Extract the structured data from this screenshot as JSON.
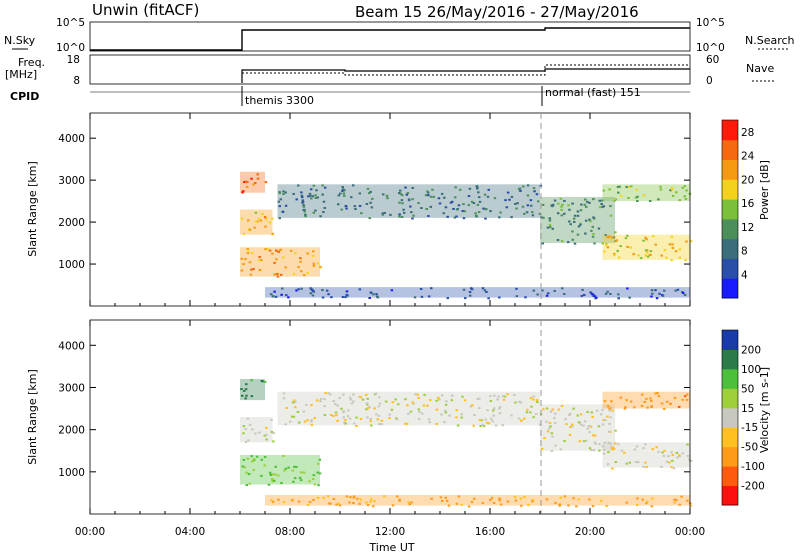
{
  "header": {
    "station": "Unwin (fitACF)",
    "beam_date": "Beam 15 26/May/2016 - 27/May/2016"
  },
  "scan_panels": {
    "nsky_label": "N.Sky",
    "nsearch_label": "N.Search",
    "nsky_ticks": [
      "10^5",
      "10^0"
    ],
    "nsearch_ticks": [
      "10^5",
      "10^0"
    ],
    "freq_label": "Freq.",
    "freq_unit": "[MHz]",
    "freq_ticks": [
      "18",
      "8"
    ],
    "nave_label": "Nave",
    "nave_ticks": [
      "60",
      "0"
    ],
    "cpid_label": "CPID",
    "cpid_modes": [
      "themis 3300",
      "normal (fast) 151"
    ]
  },
  "colors": {
    "power": [
      "#1a1aff",
      "#2a4fa8",
      "#3b6e7a",
      "#4c8f5a",
      "#7cbf3a",
      "#f2d21a",
      "#f59a10",
      "#f56a10",
      "#ff1a0a"
    ],
    "velocity": [
      "#ff1010",
      "#ff5a10",
      "#ff9a1a",
      "#ffc020",
      "#c8c8c0",
      "#9ccf3a",
      "#4cc03a",
      "#2a7a4a",
      "#1a3aa8"
    ]
  },
  "chart_data": [
    {
      "type": "heatmap",
      "name": "power",
      "xlabel": "",
      "ylabel": "Slant Range [km]",
      "x_ticks": [
        "00:00",
        "04:00",
        "08:00",
        "12:00",
        "16:00",
        "20:00",
        "00:00"
      ],
      "xlim_hours": [
        0,
        24
      ],
      "ylim_km": [
        0,
        4600
      ],
      "y_ticks": [
        1000,
        2000,
        3000,
        4000
      ],
      "colorbar_label": "Power [dB]",
      "colorbar_ticks": [
        4,
        8,
        12,
        16,
        20,
        24,
        28
      ],
      "colorbar_range": [
        0,
        30
      ],
      "mode_change_hour": 18,
      "echo_regions": [
        {
          "t": [
            6.0,
            7.0
          ],
          "range_km": [
            2700,
            3200
          ],
          "value_db": 26
        },
        {
          "t": [
            6.0,
            7.3
          ],
          "range_km": [
            1700,
            2300
          ],
          "value_db": 20
        },
        {
          "t": [
            6.0,
            9.2
          ],
          "range_km": [
            700,
            1400
          ],
          "value_db": 22
        },
        {
          "t": [
            7.5,
            18.0
          ],
          "range_km": [
            2100,
            2900
          ],
          "value_db": 9
        },
        {
          "t": [
            7.0,
            24.0
          ],
          "range_km": [
            200,
            450
          ],
          "value_db": 6
        },
        {
          "t": [
            18.0,
            21.0
          ],
          "range_km": [
            1500,
            2600
          ],
          "value_db": 11
        },
        {
          "t": [
            20.5,
            24.0
          ],
          "range_km": [
            1100,
            1700
          ],
          "value_db": 19
        },
        {
          "t": [
            20.5,
            24.0
          ],
          "range_km": [
            2500,
            2900
          ],
          "value_db": 14
        }
      ]
    },
    {
      "type": "heatmap",
      "name": "velocity",
      "xlabel": "Time UT",
      "ylabel": "Slant Range [km]",
      "x_ticks": [
        "00:00",
        "04:00",
        "08:00",
        "12:00",
        "16:00",
        "20:00",
        "00:00"
      ],
      "xlim_hours": [
        0,
        24
      ],
      "ylim_km": [
        0,
        4600
      ],
      "y_ticks": [
        1000,
        2000,
        3000,
        4000
      ],
      "colorbar_label": "Velocity [m s-1]",
      "colorbar_ticks": [
        200,
        100,
        50,
        15,
        -15,
        -50,
        -100,
        -200
      ],
      "mode_change_hour": 18,
      "echo_regions": [
        {
          "t": [
            6.0,
            7.0
          ],
          "range_km": [
            2700,
            3200
          ],
          "value_ms": 120
        },
        {
          "t": [
            6.0,
            7.3
          ],
          "range_km": [
            1700,
            2300
          ],
          "value_ms": 0
        },
        {
          "t": [
            6.0,
            9.2
          ],
          "range_km": [
            700,
            1400
          ],
          "value_ms": 60
        },
        {
          "t": [
            7.5,
            18.0
          ],
          "range_km": [
            2100,
            2900
          ],
          "value_ms": 0
        },
        {
          "t": [
            7.0,
            24.0
          ],
          "range_km": [
            200,
            450
          ],
          "value_ms": -60
        },
        {
          "t": [
            18.0,
            21.0
          ],
          "range_km": [
            1500,
            2600
          ],
          "value_ms": 0
        },
        {
          "t": [
            20.5,
            24.0
          ],
          "range_km": [
            1100,
            1700
          ],
          "value_ms": 0
        },
        {
          "t": [
            20.5,
            24.0
          ],
          "range_km": [
            2500,
            2900
          ],
          "value_ms": -80
        }
      ]
    }
  ]
}
